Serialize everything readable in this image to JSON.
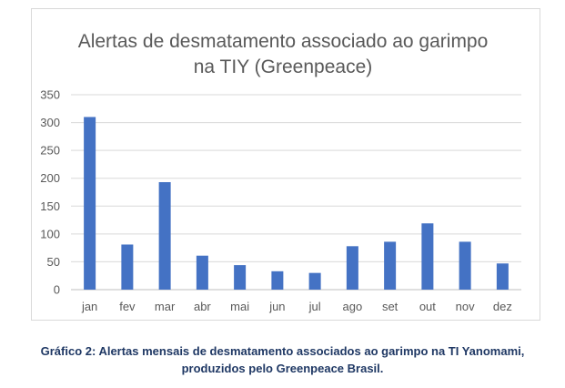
{
  "chart_data": {
    "type": "bar",
    "title_lines": [
      "Alertas de desmatamento associado ao garimpo",
      "na TIY (Greenpeace)"
    ],
    "categories": [
      "jan",
      "fev",
      "mar",
      "abr",
      "mai",
      "jun",
      "jul",
      "ago",
      "set",
      "out",
      "nov",
      "dez"
    ],
    "values": [
      310,
      81,
      193,
      61,
      44,
      33,
      30,
      78,
      86,
      119,
      86,
      47
    ],
    "ylim": [
      0,
      350
    ],
    "yticks": [
      0,
      50,
      100,
      150,
      200,
      250,
      300,
      350
    ],
    "bar_color": "#4472c4",
    "grid": true,
    "legend": "none"
  },
  "caption": {
    "line1": "Gráfico 2: Alertas mensais de desmatamento associados ao garimpo na TI Yanomami,",
    "line2": "produzidos pelo Greenpeace Brasil."
  }
}
